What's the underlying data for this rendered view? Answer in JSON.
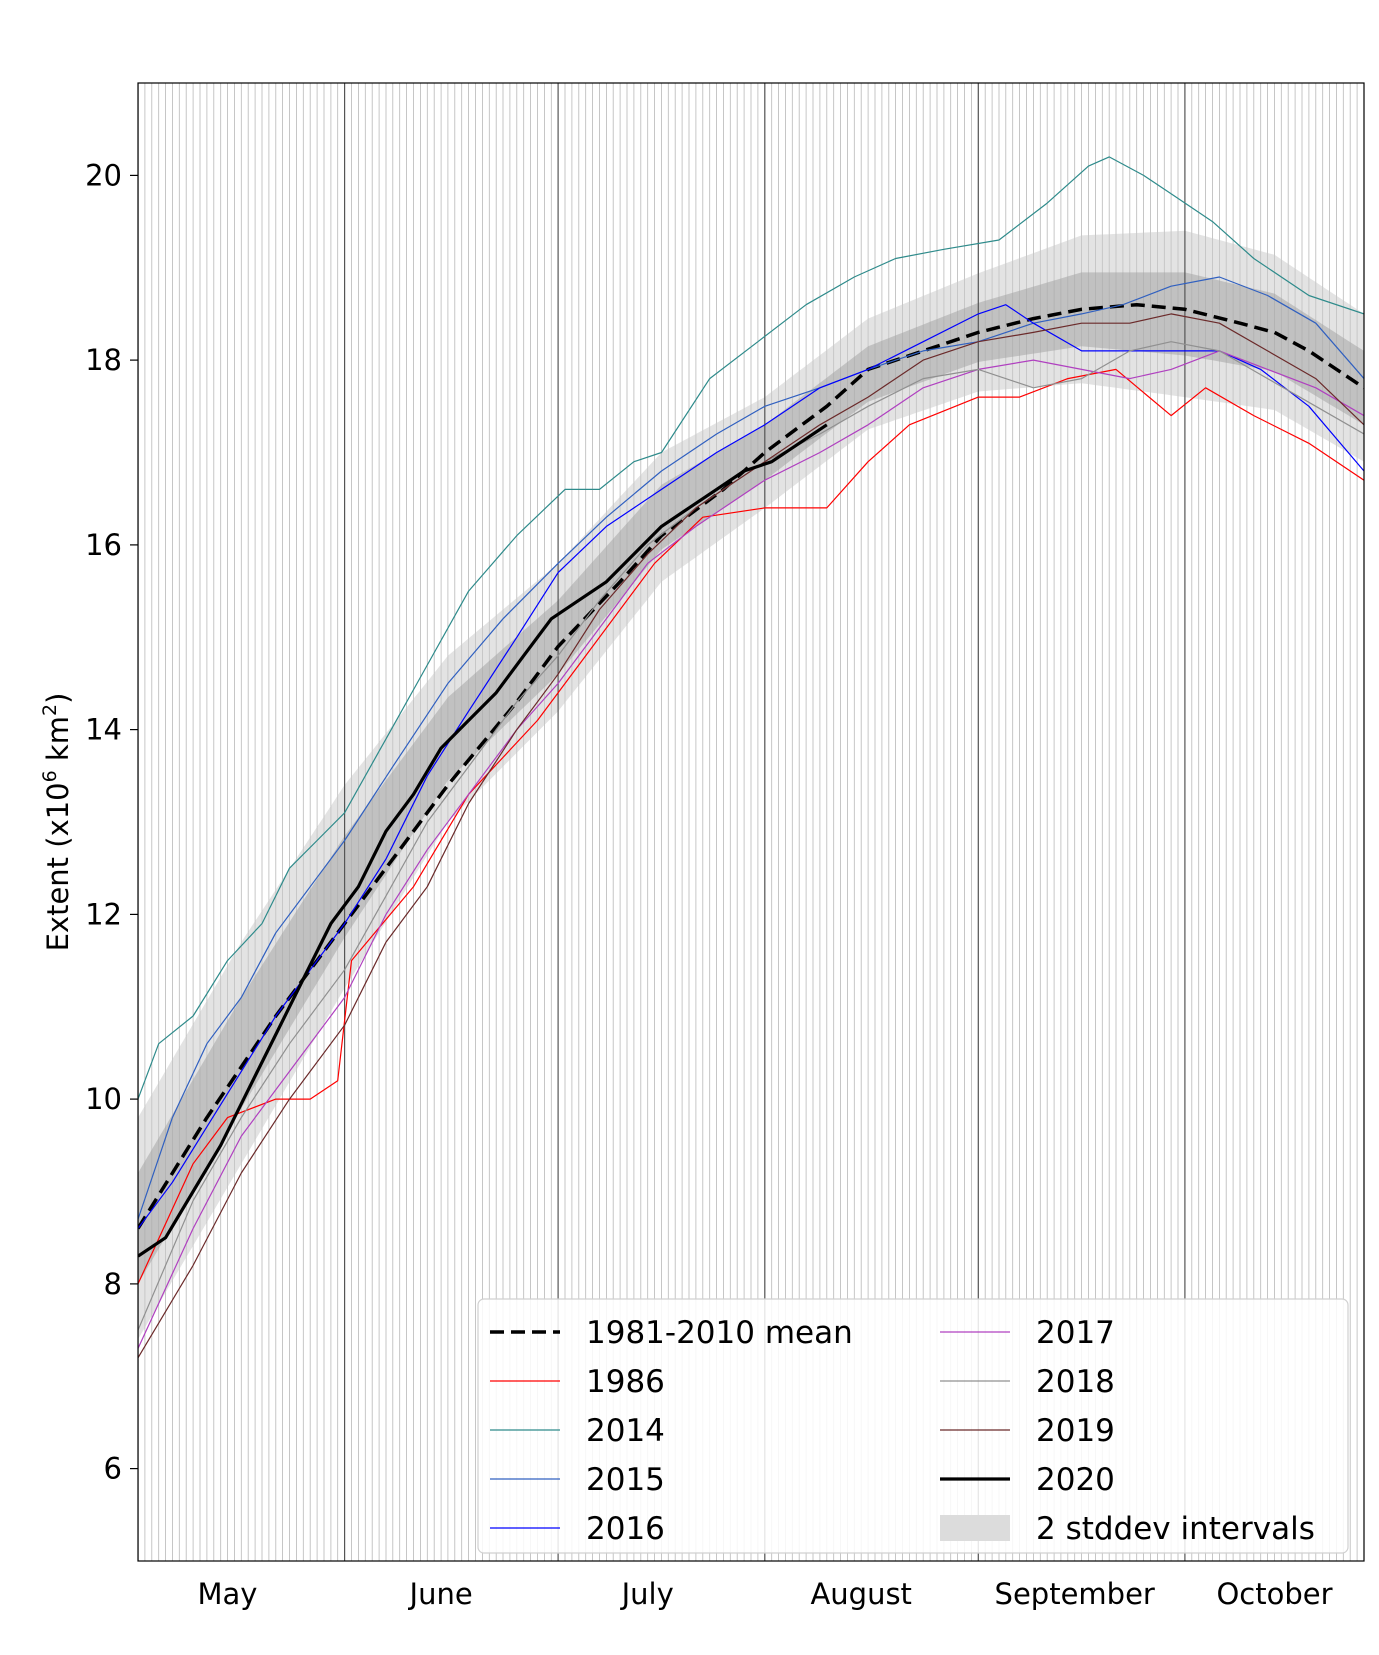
{
  "chart_data": {
    "type": "line",
    "title": "",
    "xlabel": "",
    "ylabel": "Extent (x10",
    "ylabel_sup": "6",
    "ylabel_unit": " km",
    "ylabel_unit_sup": "2",
    "ylabel_close": ")",
    "ylim": [
      5,
      21
    ],
    "xlim_days": [
      0,
      178
    ],
    "x_unit": "days since 1 May",
    "y_ticks": [
      {
        "value": 6,
        "label": "6"
      },
      {
        "value": 8,
        "label": "8"
      },
      {
        "value": 10,
        "label": "10"
      },
      {
        "value": 12,
        "label": "12"
      },
      {
        "value": 14,
        "label": "14"
      },
      {
        "value": 16,
        "label": "16"
      },
      {
        "value": 18,
        "label": "18"
      },
      {
        "value": 20,
        "label": "20"
      }
    ],
    "month_boundaries_days": [
      0,
      30,
      61,
      91,
      122,
      152
    ],
    "month_labels": [
      {
        "day": 13,
        "label": "May"
      },
      {
        "day": 44,
        "label": "June"
      },
      {
        "day": 74,
        "label": "July"
      },
      {
        "day": 105,
        "label": "August"
      },
      {
        "day": 136,
        "label": "September"
      },
      {
        "day": 165,
        "label": "October"
      }
    ],
    "grid": "vertical daily lines",
    "legend_position": "bottom-right",
    "bands": {
      "name": "2 stddev intervals",
      "x": [
        0,
        15,
        30,
        45,
        61,
        76,
        91,
        106,
        122,
        137,
        152,
        165,
        178
      ],
      "mean": [
        8.6,
        10.5,
        12.3,
        13.9,
        15.0,
        16.3,
        17.0,
        17.85,
        18.3,
        18.55,
        18.5,
        18.3,
        17.7
      ],
      "sd": [
        0.6,
        0.6,
        0.55,
        0.45,
        0.4,
        0.35,
        0.3,
        0.3,
        0.32,
        0.4,
        0.45,
        0.42,
        0.4
      ]
    },
    "series": [
      {
        "name": "1981-2010 mean",
        "color": "#000000",
        "style": "dashed",
        "width": 3.5,
        "x": [
          0,
          10,
          20,
          30,
          40,
          45,
          55,
          61,
          70,
          76,
          85,
          91,
          100,
          106,
          114,
          122,
          130,
          137,
          145,
          152,
          160,
          165,
          170,
          178
        ],
        "values": [
          8.6,
          9.8,
          10.9,
          11.9,
          12.9,
          13.4,
          14.3,
          14.9,
          15.6,
          16.1,
          16.6,
          17.0,
          17.5,
          17.9,
          18.1,
          18.3,
          18.45,
          18.55,
          18.6,
          18.55,
          18.4,
          18.3,
          18.1,
          17.7
        ]
      },
      {
        "name": "1986",
        "color": "#ff0000",
        "style": "solid",
        "width": 1.2,
        "x": [
          0,
          8,
          13,
          20,
          25,
          29,
          31,
          40,
          48,
          58,
          66,
          75,
          82,
          91,
          100,
          106,
          112,
          122,
          128,
          135,
          142,
          150,
          155,
          162,
          170,
          178
        ],
        "values": [
          8.0,
          9.3,
          9.8,
          10.0,
          10.0,
          10.2,
          11.5,
          12.3,
          13.3,
          14.1,
          14.9,
          15.8,
          16.3,
          16.4,
          16.4,
          16.9,
          17.3,
          17.6,
          17.6,
          17.8,
          17.9,
          17.4,
          17.7,
          17.4,
          17.1,
          16.7
        ]
      },
      {
        "name": "2014",
        "color": "#2e8b8b",
        "style": "solid",
        "width": 1.2,
        "x": [
          0,
          3,
          8,
          13,
          18,
          22,
          26,
          30,
          36,
          42,
          48,
          55,
          62,
          67,
          72,
          76,
          83,
          90,
          97,
          104,
          110,
          117,
          125,
          132,
          138,
          141,
          146,
          150,
          156,
          162,
          170,
          178
        ],
        "values": [
          10.0,
          10.6,
          10.9,
          11.5,
          11.9,
          12.5,
          12.8,
          13.1,
          13.9,
          14.7,
          15.5,
          16.1,
          16.6,
          16.6,
          16.9,
          17.0,
          17.8,
          18.2,
          18.6,
          18.9,
          19.1,
          19.2,
          19.3,
          19.7,
          20.1,
          20.2,
          20.0,
          19.8,
          19.5,
          19.1,
          18.7,
          18.5
        ]
      },
      {
        "name": "2015",
        "color": "#3060c0",
        "style": "solid",
        "width": 1.2,
        "x": [
          0,
          5,
          10,
          15,
          20,
          25,
          30,
          37,
          45,
          53,
          61,
          68,
          76,
          84,
          91,
          99,
          106,
          114,
          122,
          130,
          137,
          143,
          150,
          157,
          164,
          171,
          178
        ],
        "values": [
          8.7,
          9.8,
          10.6,
          11.1,
          11.8,
          12.3,
          12.8,
          13.6,
          14.5,
          15.2,
          15.8,
          16.3,
          16.8,
          17.2,
          17.5,
          17.7,
          17.9,
          18.1,
          18.2,
          18.4,
          18.5,
          18.6,
          18.8,
          18.9,
          18.7,
          18.4,
          17.8
        ]
      },
      {
        "name": "2016",
        "color": "#0000ff",
        "style": "solid",
        "width": 1.2,
        "x": [
          0,
          5,
          10,
          15,
          20,
          25,
          30,
          36,
          42,
          48,
          55,
          61,
          68,
          76,
          84,
          91,
          99,
          106,
          114,
          122,
          126,
          130,
          137,
          145,
          150,
          157,
          163,
          170,
          178
        ],
        "values": [
          8.6,
          9.1,
          9.7,
          10.3,
          10.9,
          11.4,
          11.9,
          12.6,
          13.5,
          14.2,
          15.0,
          15.7,
          16.2,
          16.6,
          17.0,
          17.3,
          17.7,
          17.9,
          18.2,
          18.5,
          18.6,
          18.4,
          18.1,
          18.1,
          18.1,
          18.1,
          17.9,
          17.5,
          16.8
        ]
      },
      {
        "name": "2017",
        "color": "#b040c0",
        "style": "solid",
        "width": 1.2,
        "x": [
          0,
          8,
          15,
          22,
          30,
          36,
          42,
          48,
          55,
          61,
          67,
          74,
          81,
          91,
          99,
          106,
          114,
          122,
          130,
          137,
          144,
          150,
          157,
          164,
          171,
          178
        ],
        "values": [
          7.3,
          8.6,
          9.6,
          10.3,
          11.1,
          12.0,
          12.7,
          13.3,
          14.0,
          14.5,
          15.1,
          15.8,
          16.2,
          16.7,
          17.0,
          17.3,
          17.7,
          17.9,
          18.0,
          17.9,
          17.8,
          17.9,
          18.1,
          17.9,
          17.7,
          17.4
        ]
      },
      {
        "name": "2018",
        "color": "#909090",
        "style": "solid",
        "width": 1.2,
        "x": [
          0,
          8,
          15,
          22,
          30,
          36,
          42,
          48,
          55,
          61,
          67,
          74,
          81,
          91,
          99,
          106,
          114,
          122,
          130,
          137,
          144,
          150,
          157,
          164,
          171,
          178
        ],
        "values": [
          7.5,
          8.9,
          9.8,
          10.6,
          11.4,
          12.2,
          13.0,
          13.6,
          14.3,
          14.8,
          15.4,
          16.0,
          16.4,
          16.9,
          17.2,
          17.5,
          17.8,
          17.9,
          17.7,
          17.8,
          18.1,
          18.2,
          18.1,
          17.8,
          17.5,
          17.2
        ]
      },
      {
        "name": "2019",
        "color": "#6b2a2a",
        "style": "solid",
        "width": 1.2,
        "x": [
          0,
          8,
          15,
          22,
          30,
          36,
          42,
          48,
          55,
          61,
          67,
          74,
          81,
          91,
          99,
          106,
          114,
          122,
          130,
          137,
          144,
          150,
          157,
          164,
          171,
          178
        ],
        "values": [
          7.2,
          8.2,
          9.2,
          10.0,
          10.8,
          11.7,
          12.3,
          13.2,
          14.0,
          14.6,
          15.3,
          15.9,
          16.4,
          16.9,
          17.3,
          17.6,
          18.0,
          18.2,
          18.3,
          18.4,
          18.4,
          18.5,
          18.4,
          18.1,
          17.8,
          17.3
        ]
      },
      {
        "name": "2020",
        "color": "#000000",
        "style": "solid",
        "width": 3.2,
        "x": [
          0,
          4,
          8,
          12,
          16,
          20,
          24,
          28,
          32,
          36,
          40,
          44,
          48,
          52,
          56,
          60,
          64,
          68,
          72,
          76,
          80,
          84,
          88,
          92,
          96,
          100
        ],
        "values": [
          8.3,
          8.5,
          9.0,
          9.5,
          10.1,
          10.7,
          11.3,
          11.9,
          12.3,
          12.9,
          13.3,
          13.8,
          14.1,
          14.4,
          14.8,
          15.2,
          15.4,
          15.6,
          15.9,
          16.2,
          16.4,
          16.6,
          16.8,
          16.9,
          17.1,
          17.3
        ]
      }
    ],
    "legend": {
      "band_label": "2 stddev intervals",
      "columns": [
        [
          "1981-2010 mean",
          "1986",
          "2014",
          "2015",
          "2016"
        ],
        [
          "2017",
          "2018",
          "2019",
          "2020",
          "2 stddev intervals"
        ]
      ]
    }
  }
}
